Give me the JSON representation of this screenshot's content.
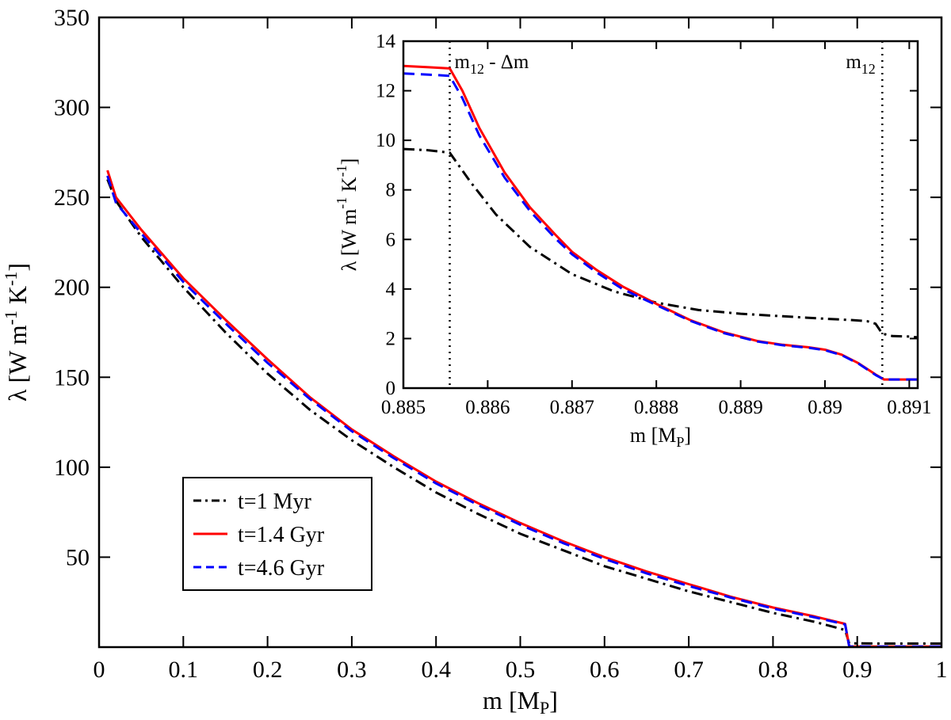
{
  "chart_data": [
    {
      "type": "line",
      "xlabel": "m [M",
      "xlabel_sub": "P",
      "xlabel_close": "]",
      "ylabel": "λ [W m",
      "ylabel_sup1": "-1",
      "ylabel_mid": " K",
      "ylabel_sup2": "-1",
      "ylabel_close": "]",
      "xlim": [
        0,
        1
      ],
      "ylim": [
        0,
        350
      ],
      "xticks": [
        0,
        0.1,
        0.2,
        0.3,
        0.4,
        0.5,
        0.6,
        0.7,
        0.8,
        0.9,
        1
      ],
      "xtick_labels": [
        "0",
        "0.1",
        "0.2",
        "0.3",
        "0.4",
        "0.5",
        "0.6",
        "0.7",
        "0.8",
        "0.9",
        "1"
      ],
      "yticks": [
        50,
        100,
        150,
        200,
        250,
        300,
        350
      ],
      "ytick_labels": [
        "50",
        "100",
        "150",
        "200",
        "250",
        "300",
        "350"
      ],
      "legend_position": "lower-left",
      "series": [
        {
          "name": "t=1 Myr",
          "color": "#000000",
          "style": "dash-dot",
          "x": [
            0.01,
            0.02,
            0.05,
            0.1,
            0.15,
            0.2,
            0.25,
            0.3,
            0.35,
            0.4,
            0.45,
            0.5,
            0.55,
            0.6,
            0.65,
            0.7,
            0.75,
            0.8,
            0.85,
            0.885,
            0.8856,
            0.89,
            0.8907,
            0.93,
            1.0
          ],
          "y": [
            260,
            248,
            228,
            200,
            175,
            152,
            132,
            115,
            100,
            86,
            74,
            63,
            54,
            45,
            38,
            31,
            25,
            19,
            14,
            9.6,
            9.5,
            2.7,
            2.1,
            2.0,
            2.0
          ]
        },
        {
          "name": "t=1.4 Gyr",
          "color": "#ff0000",
          "style": "solid",
          "x": [
            0.01,
            0.02,
            0.05,
            0.1,
            0.15,
            0.2,
            0.25,
            0.3,
            0.35,
            0.4,
            0.45,
            0.5,
            0.55,
            0.6,
            0.65,
            0.7,
            0.75,
            0.8,
            0.85,
            0.885,
            0.8856,
            0.89,
            0.8907,
            0.93,
            1.0
          ],
          "y": [
            265,
            250,
            232,
            205,
            182,
            160,
            139,
            121,
            106,
            92,
            80,
            69,
            59,
            50,
            42,
            35,
            28,
            22,
            17,
            13,
            12.9,
            1.5,
            0.3,
            0.3,
            0.3
          ]
        },
        {
          "name": "t=4.6 Gyr",
          "color": "#0000ff",
          "style": "dashed",
          "x": [
            0.01,
            0.02,
            0.05,
            0.1,
            0.15,
            0.2,
            0.25,
            0.3,
            0.35,
            0.4,
            0.45,
            0.5,
            0.55,
            0.6,
            0.65,
            0.7,
            0.75,
            0.8,
            0.85,
            0.885,
            0.8856,
            0.89,
            0.8907,
            0.93,
            1.0
          ],
          "y": [
            262,
            247,
            230,
            203,
            180,
            158,
            138,
            120,
            105,
            91,
            79,
            68,
            58,
            49,
            41,
            34,
            27.5,
            21.5,
            16.5,
            12.7,
            12.6,
            1.5,
            0.3,
            0.3,
            0.3
          ]
        }
      ]
    },
    {
      "type": "line",
      "xlabel": "m [M",
      "xlabel_sub": "P",
      "xlabel_close": "]",
      "ylabel": "λ [W m",
      "ylabel_sup1": "-1",
      "ylabel_mid": " K",
      "ylabel_sup2": "-1",
      "ylabel_close": "]",
      "xlim": [
        0.885,
        0.8911
      ],
      "ylim": [
        0,
        14
      ],
      "xticks": [
        0.885,
        0.886,
        0.887,
        0.888,
        0.889,
        0.89,
        0.891
      ],
      "xtick_labels": [
        "0.885",
        "0.886",
        "0.887",
        "0.888",
        "0.889",
        "0.89",
        "0.891"
      ],
      "yticks": [
        0,
        2,
        4,
        6,
        8,
        10,
        12,
        14
      ],
      "ytick_labels": [
        "0",
        "2",
        "4",
        "6",
        "8",
        "10",
        "12",
        "14"
      ],
      "markers": [
        {
          "x": 0.88555,
          "label": "m",
          "sub": "12",
          "suffix": " - Δm"
        },
        {
          "x": 0.89068,
          "label": "m",
          "sub": "12",
          "suffix": ""
        }
      ],
      "series": [
        {
          "name": "t=1 Myr",
          "color": "#000000",
          "style": "dash-dot",
          "x": [
            0.885,
            0.8853,
            0.88555,
            0.8858,
            0.8861,
            0.8865,
            0.887,
            0.8875,
            0.888,
            0.8885,
            0.889,
            0.8895,
            0.89,
            0.8903,
            0.8905,
            0.8906,
            0.89068,
            0.8908,
            0.891,
            0.8911
          ],
          "y": [
            9.65,
            9.6,
            9.5,
            8.3,
            7.0,
            5.7,
            4.6,
            3.9,
            3.45,
            3.15,
            3.0,
            2.9,
            2.8,
            2.75,
            2.7,
            2.6,
            2.2,
            2.1,
            2.08,
            2.05
          ]
        },
        {
          "name": "t=1.4 Gyr",
          "color": "#ff0000",
          "style": "solid",
          "x": [
            0.885,
            0.8853,
            0.88555,
            0.8857,
            0.8859,
            0.8862,
            0.8865,
            0.8868,
            0.887,
            0.8873,
            0.8876,
            0.888,
            0.8884,
            0.8888,
            0.8892,
            0.8895,
            0.8898,
            0.89,
            0.8902,
            0.8904,
            0.8906,
            0.8907,
            0.891,
            0.8911
          ],
          "y": [
            13.0,
            12.95,
            12.9,
            12.0,
            10.5,
            8.7,
            7.3,
            6.2,
            5.5,
            4.75,
            4.1,
            3.4,
            2.75,
            2.25,
            1.9,
            1.75,
            1.65,
            1.55,
            1.35,
            1.0,
            0.55,
            0.35,
            0.35,
            0.35
          ]
        },
        {
          "name": "t=4.6 Gyr",
          "color": "#0000ff",
          "style": "dashed",
          "x": [
            0.885,
            0.8853,
            0.88555,
            0.8857,
            0.8859,
            0.8862,
            0.8865,
            0.8868,
            0.887,
            0.8873,
            0.8876,
            0.888,
            0.8884,
            0.8888,
            0.8892,
            0.8895,
            0.8898,
            0.89,
            0.8902,
            0.8904,
            0.8906,
            0.8907,
            0.891,
            0.8911
          ],
          "y": [
            12.7,
            12.65,
            12.6,
            11.7,
            10.2,
            8.5,
            7.15,
            6.05,
            5.4,
            4.65,
            4.0,
            3.35,
            2.72,
            2.22,
            1.88,
            1.73,
            1.63,
            1.53,
            1.33,
            0.98,
            0.53,
            0.35,
            0.35,
            0.35
          ]
        }
      ]
    }
  ]
}
